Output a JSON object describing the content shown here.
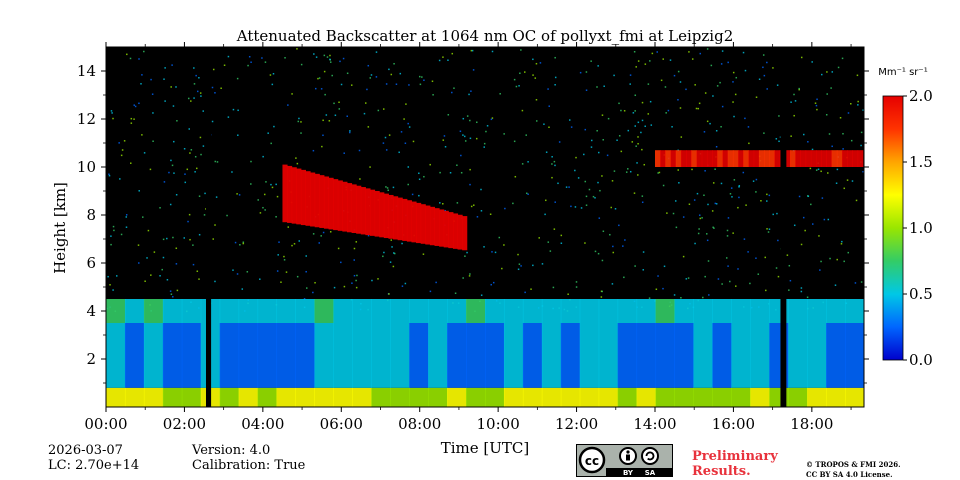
{
  "chart_data": {
    "type": "heatmap",
    "title": "Attenuated Backscatter at 1064 nm OC of pollyxt_fmi at Leipzig2",
    "xlabel": "Time [UTC]",
    "ylabel": "Height [km]",
    "xlim": [
      0,
      19.33
    ],
    "ylim": [
      0,
      15
    ],
    "x_ticks": [
      "00:00",
      "02:00",
      "04:00",
      "06:00",
      "08:00",
      "10:00",
      "12:00",
      "14:00",
      "16:00",
      "18:00"
    ],
    "y_ticks": [
      "2",
      "4",
      "6",
      "8",
      "10",
      "12",
      "14"
    ],
    "colorbar": {
      "label": "Mm⁻¹ sr⁻¹",
      "range": [
        0.0,
        2.0
      ],
      "ticks": [
        "0.0",
        "0.5",
        "1.0",
        "1.5",
        "2.0"
      ],
      "colormap": [
        "#0000cc",
        "#0066ff",
        "#00c8e6",
        "#33cc66",
        "#99e600",
        "#ffff00",
        "#ffa500",
        "#ff3300",
        "#e60000"
      ]
    },
    "regions": [
      {
        "name": "near-surface-layer",
        "t_start": 0,
        "t_end": 19.33,
        "h_bottom": 0.0,
        "h_top": 0.8,
        "value": 1.1
      },
      {
        "name": "boundary-layer",
        "t_start": 0,
        "t_end": 19.33,
        "h_bottom": 0.8,
        "h_top": 3.5,
        "value": 0.35
      },
      {
        "name": "aerosol-layer",
        "t_start": 0,
        "t_end": 19.33,
        "h_bottom": 3.5,
        "h_top": 4.5,
        "value": 0.55
      },
      {
        "name": "cirrus-cloud",
        "t_start": 4.5,
        "t_end": 9.2,
        "h_bottom": 6.5,
        "h_top": 10.1,
        "value": 2.0
      },
      {
        "name": "cirrus-cloud-late",
        "t_start": 14.0,
        "t_end": 19.3,
        "h_bottom": 10.0,
        "h_top": 10.7,
        "value": 1.9
      }
    ],
    "data_gaps": [
      {
        "t_start": 2.55,
        "t_end": 2.68
      },
      {
        "t_start": 17.2,
        "t_end": 17.35
      }
    ]
  },
  "footer": {
    "date": "2026-03-07",
    "lc": "LC: 2.70e+14",
    "version": "Version: 4.0",
    "calibration": "Calibration: True",
    "preliminary": "Preliminary\nResults.",
    "copyright_line1": "© TROPOS & FMI 2026.",
    "copyright_line2": "CC BY SA 4.0 License.",
    "badge": {
      "cc": "cc",
      "by": "BY",
      "sa": "SA"
    }
  }
}
